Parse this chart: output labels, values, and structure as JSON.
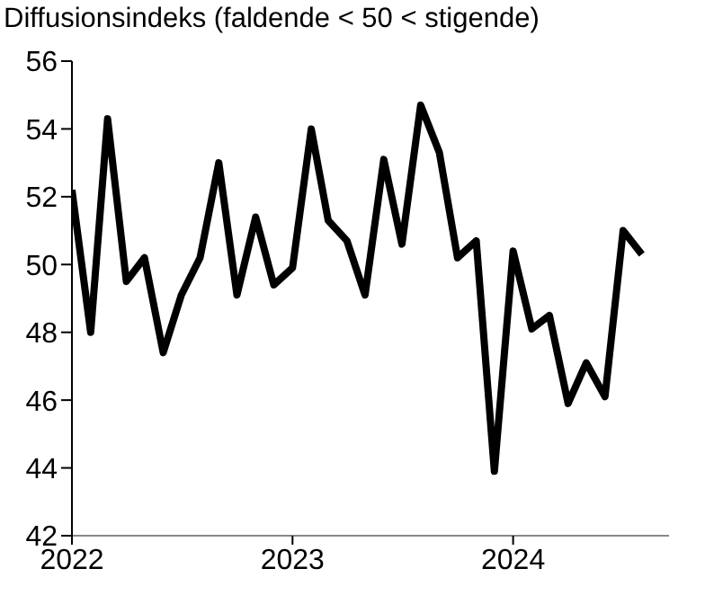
{
  "chart_data": {
    "type": "line",
    "title": "Diffusionsindeks (faldende < 50 < stigende)",
    "x": [
      "2022-01",
      "2022-02",
      "2022-03",
      "2022-04",
      "2022-05",
      "2022-06",
      "2022-07",
      "2022-08",
      "2022-09",
      "2022-10",
      "2022-11",
      "2022-12",
      "2023-01",
      "2023-02",
      "2023-03",
      "2023-04",
      "2023-05",
      "2023-06",
      "2023-07",
      "2023-08",
      "2023-09",
      "2023-10",
      "2023-11",
      "2023-12",
      "2024-01",
      "2024-02",
      "2024-03",
      "2024-04",
      "2024-05",
      "2024-06",
      "2024-07",
      "2024-08"
    ],
    "series": [
      {
        "color": "#000000",
        "values": [
          52.2,
          48.0,
          54.3,
          49.5,
          50.2,
          47.4,
          49.1,
          50.2,
          53.0,
          49.1,
          51.4,
          49.4,
          49.9,
          54.0,
          51.3,
          50.7,
          49.1,
          53.1,
          50.6,
          54.7,
          53.3,
          50.2,
          50.7,
          43.9,
          50.4,
          48.1,
          48.5,
          45.9,
          47.1,
          46.1,
          51.0,
          50.3
        ]
      }
    ],
    "xlim": [
      "2022-01",
      "2024-09-15"
    ],
    "xticks": [
      "2022",
      "2023",
      "2024"
    ],
    "ylim": [
      42,
      56
    ],
    "yticks": [
      42,
      44,
      46,
      48,
      50,
      52,
      54,
      56
    ],
    "grid": false,
    "legend": false,
    "marker": "none",
    "line_style": "solid"
  }
}
